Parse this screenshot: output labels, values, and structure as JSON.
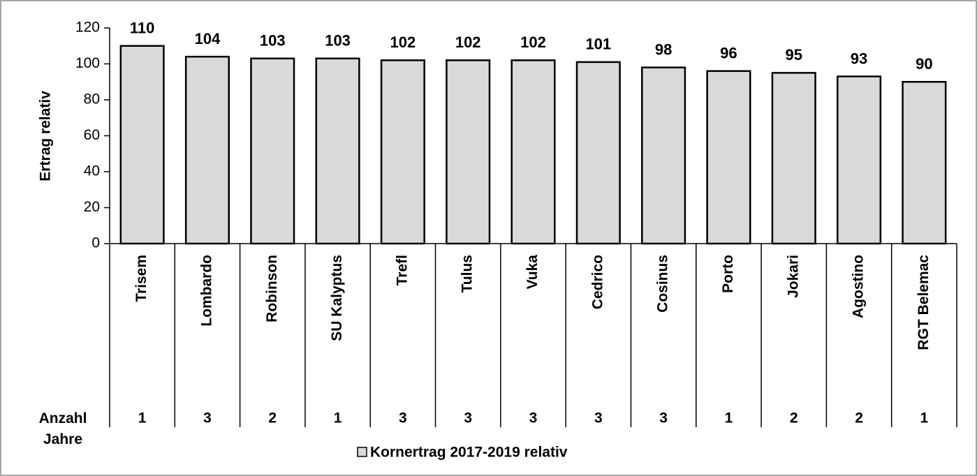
{
  "chart_data": {
    "type": "bar",
    "y_label": "Ertrag relativ",
    "categories": [
      "Trisem",
      "Lombardo",
      "Robinson",
      "SU Kalyptus",
      "Trefl",
      "Tulus",
      "Vuka",
      "Cedrico",
      "Cosinus",
      "Porto",
      "Jokari",
      "Agostino",
      "RGT Belemac"
    ],
    "series": [
      {
        "name": "Kornertrag 2017-2019 relativ",
        "color": "#d9d9d9",
        "values": [
          110,
          104,
          103,
          103,
          102,
          102,
          102,
          101,
          98,
          96,
          95,
          93,
          90
        ]
      }
    ],
    "table_row": {
      "label": "Anzahl Jahre",
      "values": [
        1,
        3,
        2,
        1,
        3,
        3,
        3,
        3,
        3,
        1,
        2,
        2,
        1
      ]
    },
    "ylim": [
      0,
      120
    ],
    "yticks": [
      0,
      20,
      40,
      60,
      80,
      100,
      120
    ],
    "grid": false,
    "legend": "bottom"
  }
}
